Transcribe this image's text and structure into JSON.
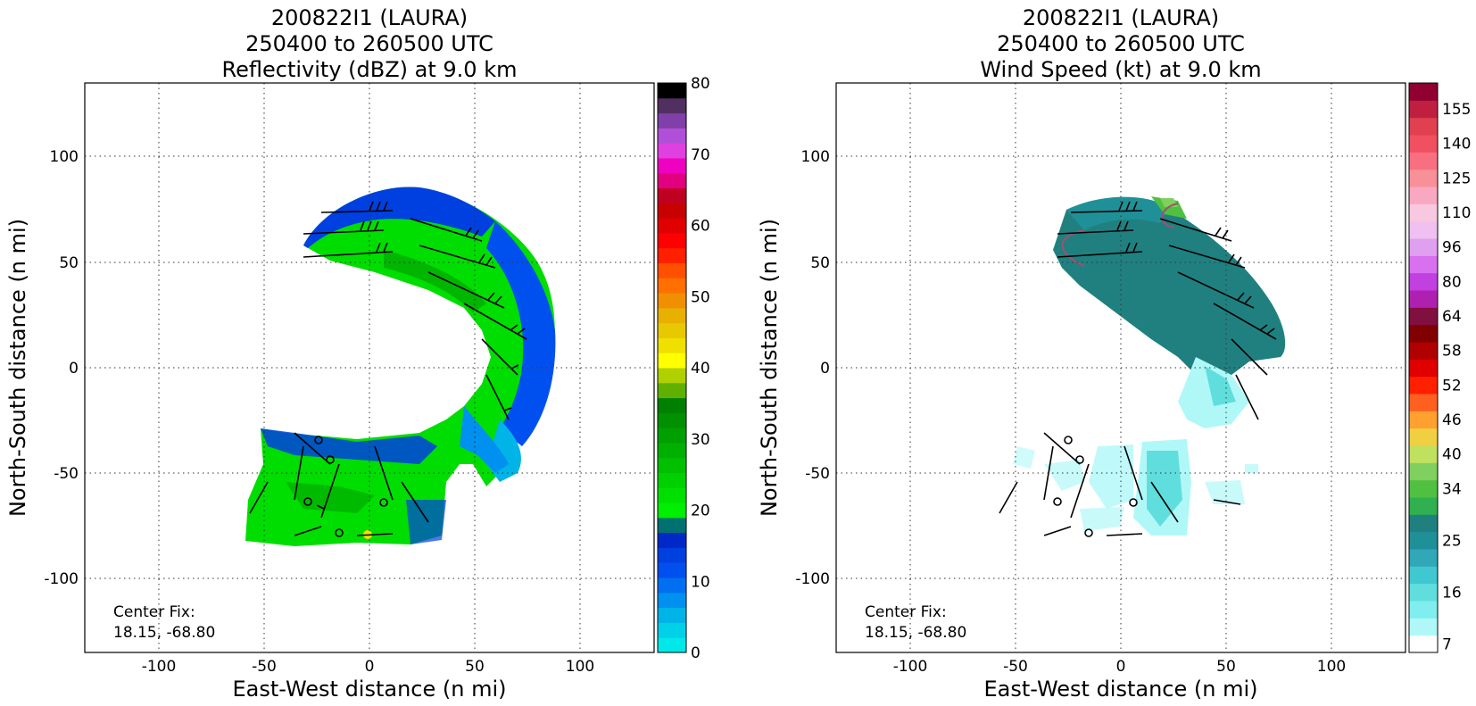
{
  "chart_data": [
    {
      "type": "heatmap",
      "title_lines": [
        "200822I1 (LAURA)",
        "250400 to 260500 UTC",
        "Reflectivity (dBZ) at 9.0 km"
      ],
      "xlabel": "East-West distance (n mi)",
      "ylabel": "North-South distance (n mi)",
      "xlim": [
        -135,
        135
      ],
      "ylim": [
        -135,
        135
      ],
      "xticks": [
        -100,
        -50,
        0,
        50,
        100
      ],
      "yticks": [
        -100,
        -50,
        0,
        50,
        100
      ],
      "grid": true,
      "annotation": [
        "Center Fix:",
        "18.15, -68.80"
      ],
      "colorbar": {
        "min": 0,
        "max": 80,
        "tick_values": [
          0,
          10,
          20,
          30,
          40,
          50,
          60,
          70,
          80
        ],
        "colors": [
          "#00e8e8",
          "#00d0e8",
          "#00b4e8",
          "#0090f0",
          "#0070f0",
          "#0050f0",
          "#0040e0",
          "#0028c8",
          "#007070",
          "#00ee00",
          "#00e000",
          "#00d000",
          "#00c000",
          "#00b000",
          "#00a000",
          "#009000",
          "#008000",
          "#60b000",
          "#b0d000",
          "#ffff00",
          "#f0e000",
          "#e8c800",
          "#e8b000",
          "#f09000",
          "#ff7000",
          "#ff5000",
          "#ff2000",
          "#ff0000",
          "#e00000",
          "#c80000",
          "#c00020",
          "#e00080",
          "#f000c0",
          "#e040e0",
          "#b050d8",
          "#8040a8",
          "#503060",
          "#000000"
        ]
      }
    },
    {
      "type": "heatmap",
      "title_lines": [
        "200822I1 (LAURA)",
        "250400 to 260500 UTC",
        "Wind Speed (kt) at 9.0 km"
      ],
      "xlabel": "East-West distance (n mi)",
      "ylabel": "North-South distance (n mi)",
      "xlim": [
        -135,
        135
      ],
      "ylim": [
        -135,
        135
      ],
      "xticks": [
        -100,
        -50,
        0,
        50,
        100
      ],
      "yticks": [
        -100,
        -50,
        0,
        50,
        100
      ],
      "grid": true,
      "annotation": [
        "Center Fix:",
        "18.15, -68.80"
      ],
      "colorbar": {
        "tick_labels": [
          "7",
          "16",
          "25",
          "34",
          "40",
          "46",
          "52",
          "58",
          "64",
          "80",
          "96",
          "110",
          "125",
          "140",
          "155"
        ],
        "tick_levels": [
          0,
          3,
          6,
          9,
          11,
          13,
          15,
          17,
          19,
          21,
          23,
          25,
          27,
          29,
          31
        ],
        "colors": [
          "#ffffff",
          "#b0f8f8",
          "#80eeee",
          "#60dede",
          "#40c8d0",
          "#30a8b8",
          "#209098",
          "#208080",
          "#30b050",
          "#50c040",
          "#80d060",
          "#c0e060",
          "#f0d040",
          "#ffa030",
          "#ff6020",
          "#ff2000",
          "#e00000",
          "#b00000",
          "#800000",
          "#801040",
          "#b020b0",
          "#c040e0",
          "#d870f0",
          "#e0a0f0",
          "#f0c0f0",
          "#f8c8e0",
          "#f8a8c0",
          "#f89098",
          "#f87080",
          "#f05060",
          "#e04050",
          "#c02040",
          "#900030"
        ]
      }
    }
  ]
}
